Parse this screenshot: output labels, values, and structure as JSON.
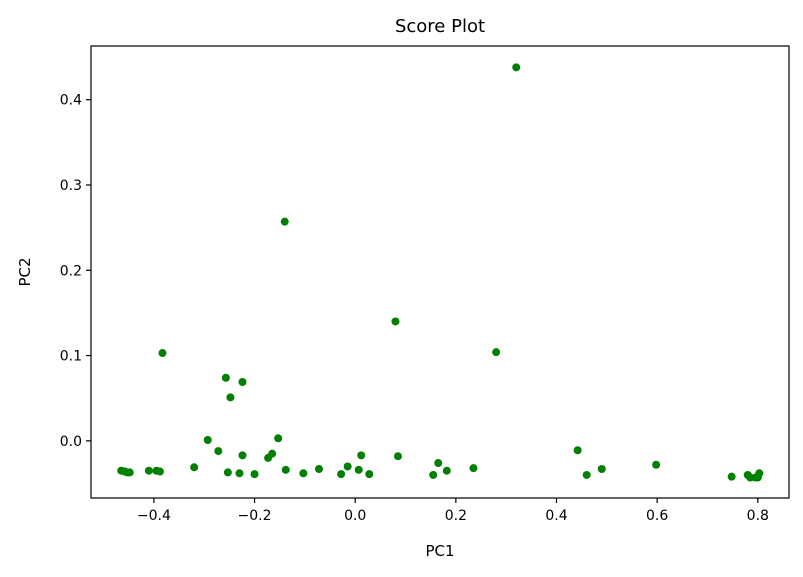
{
  "chart_data": {
    "type": "scatter",
    "title": "Score Plot",
    "xlabel": "PC1",
    "ylabel": "PC2",
    "xlim": [
      -0.525,
      0.862
    ],
    "ylim": [
      -0.067,
      0.463
    ],
    "xticks": [
      -0.4,
      -0.2,
      0.0,
      0.2,
      0.4,
      0.6,
      0.8
    ],
    "xtick_labels": [
      "−0.4",
      "−0.2",
      "0.0",
      "0.2",
      "0.4",
      "0.6",
      "0.8"
    ],
    "yticks": [
      0.0,
      0.1,
      0.2,
      0.3,
      0.4
    ],
    "ytick_labels": [
      "0.0",
      "0.1",
      "0.2",
      "0.3",
      "0.4"
    ],
    "grid": false,
    "marker_color": "#008000",
    "points": [
      {
        "x": -0.465,
        "y": -0.035
      },
      {
        "x": -0.458,
        "y": -0.036
      },
      {
        "x": -0.453,
        "y": -0.037
      },
      {
        "x": -0.448,
        "y": -0.037
      },
      {
        "x": -0.41,
        "y": -0.035
      },
      {
        "x": -0.395,
        "y": -0.035
      },
      {
        "x": -0.388,
        "y": -0.036
      },
      {
        "x": -0.383,
        "y": 0.103
      },
      {
        "x": -0.32,
        "y": -0.031
      },
      {
        "x": -0.293,
        "y": 0.001
      },
      {
        "x": -0.272,
        "y": -0.012
      },
      {
        "x": -0.257,
        "y": 0.074
      },
      {
        "x": -0.253,
        "y": -0.037
      },
      {
        "x": -0.248,
        "y": 0.051
      },
      {
        "x": -0.23,
        "y": -0.038
      },
      {
        "x": -0.224,
        "y": 0.069
      },
      {
        "x": -0.224,
        "y": -0.017
      },
      {
        "x": -0.2,
        "y": -0.039
      },
      {
        "x": -0.173,
        "y": -0.02
      },
      {
        "x": -0.165,
        "y": -0.015
      },
      {
        "x": -0.153,
        "y": 0.003
      },
      {
        "x": -0.14,
        "y": 0.257
      },
      {
        "x": -0.138,
        "y": -0.034
      },
      {
        "x": -0.103,
        "y": -0.038
      },
      {
        "x": -0.072,
        "y": -0.033
      },
      {
        "x": -0.028,
        "y": -0.039
      },
      {
        "x": -0.015,
        "y": -0.03
      },
      {
        "x": 0.007,
        "y": -0.034
      },
      {
        "x": 0.012,
        "y": -0.017
      },
      {
        "x": 0.028,
        "y": -0.039
      },
      {
        "x": 0.08,
        "y": 0.14
      },
      {
        "x": 0.085,
        "y": -0.018
      },
      {
        "x": 0.155,
        "y": -0.04
      },
      {
        "x": 0.165,
        "y": -0.026
      },
      {
        "x": 0.182,
        "y": -0.035
      },
      {
        "x": 0.235,
        "y": -0.032
      },
      {
        "x": 0.28,
        "y": 0.104
      },
      {
        "x": 0.32,
        "y": 0.438
      },
      {
        "x": 0.442,
        "y": -0.011
      },
      {
        "x": 0.46,
        "y": -0.04
      },
      {
        "x": 0.49,
        "y": -0.033
      },
      {
        "x": 0.598,
        "y": -0.028
      },
      {
        "x": 0.748,
        "y": -0.042
      },
      {
        "x": 0.78,
        "y": -0.04
      },
      {
        "x": 0.785,
        "y": -0.043
      },
      {
        "x": 0.795,
        "y": -0.043
      },
      {
        "x": 0.8,
        "y": -0.043
      },
      {
        "x": 0.803,
        "y": -0.038
      }
    ]
  }
}
